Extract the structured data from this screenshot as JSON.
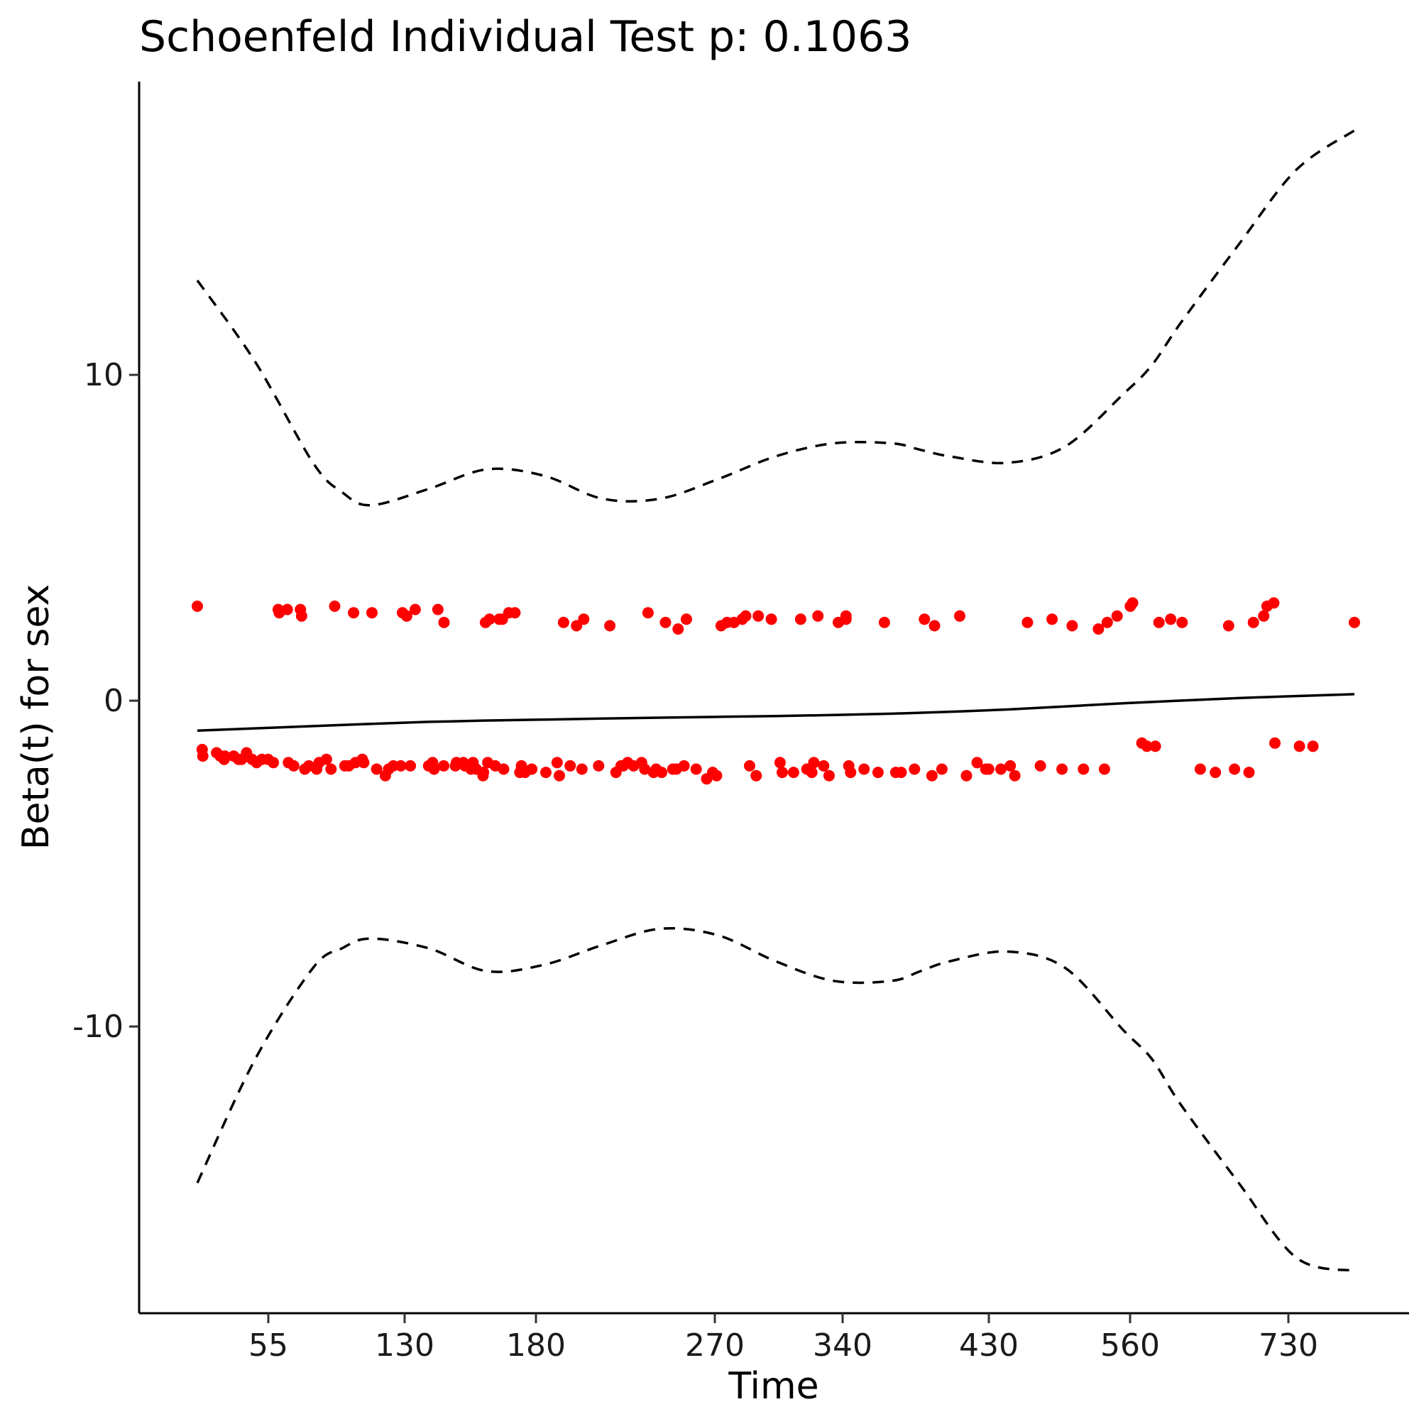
{
  "chart_data": {
    "type": "scatter",
    "title": "Schoenfeld Individual Test p: 0.1063",
    "xlabel": "Time",
    "ylabel": "Beta(t) for sex",
    "x_axis_scale": "km-transformed time",
    "x_ticks": [
      "55",
      "130",
      "180",
      "270",
      "340",
      "430",
      "560",
      "730"
    ],
    "y_ticks": [
      -10,
      0,
      10
    ],
    "ylim": [
      -18.8,
      19.0
    ],
    "grid": false,
    "legend": "none",
    "colors": {
      "points": "#ff0000",
      "fit": "#000000",
      "band": "#000000"
    },
    "series": [
      {
        "kind": "points",
        "x_rank": [
          0.0,
          0.0042,
          0.0047,
          0.0166,
          0.0198,
          0.0232,
          0.0238,
          0.0314,
          0.0356,
          0.0382,
          0.0425,
          0.0473,
          0.0512,
          0.0558,
          0.0611,
          0.0657,
          0.0699,
          0.0708,
          0.0777,
          0.0787,
          0.0833,
          0.0891,
          0.0901,
          0.0929,
          0.0964,
          0.1031,
          0.1052,
          0.1116,
          0.1155,
          0.1187,
          0.1275,
          0.1309,
          0.135,
          0.1367,
          0.1426,
          0.1438,
          0.1509,
          0.155,
          0.1625,
          0.1653,
          0.1694,
          0.1758,
          0.1773,
          0.1809,
          0.1841,
          0.1883,
          0.1999,
          0.2033,
          0.2046,
          0.2079,
          0.2129,
          0.2132,
          0.223,
          0.224,
          0.2299,
          0.2313,
          0.2365,
          0.2383,
          0.2411,
          0.2469,
          0.2473,
          0.249,
          0.251,
          0.2525,
          0.2575,
          0.2609,
          0.2637,
          0.2647,
          0.2692,
          0.2745,
          0.2787,
          0.2801,
          0.2832,
          0.289,
          0.3012,
          0.3109,
          0.3129,
          0.3165,
          0.3222,
          0.3277,
          0.3324,
          0.3339,
          0.3468,
          0.3565,
          0.3618,
          0.3662,
          0.3681,
          0.3719,
          0.377,
          0.384,
          0.3867,
          0.3895,
          0.3943,
          0.3965,
          0.4013,
          0.4046,
          0.4109,
          0.414,
          0.4155,
          0.4206,
          0.4227,
          0.4311,
          0.4402,
          0.4454,
          0.4488,
          0.4527,
          0.4578,
          0.4638,
          0.471,
          0.4739,
          0.4773,
          0.483,
          0.4848,
          0.4961,
          0.5036,
          0.5055,
          0.5153,
          0.5214,
          0.5268,
          0.5311,
          0.5328,
          0.5363,
          0.5413,
          0.546,
          0.554,
          0.5606,
          0.5606,
          0.563,
          0.5646,
          0.5762,
          0.5883,
          0.5938,
          0.6036,
          0.6083,
          0.6198,
          0.6284,
          0.6349,
          0.6371,
          0.6435,
          0.6589,
          0.6647,
          0.6739,
          0.6814,
          0.6839,
          0.6945,
          0.7026,
          0.7065,
          0.7174,
          0.7286,
          0.7387,
          0.7473,
          0.7561,
          0.7658,
          0.7788,
          0.784,
          0.7864,
          0.7949,
          0.8063,
          0.8083,
          0.8163,
          0.8207,
          0.828,
          0.8311,
          0.8412,
          0.8511,
          0.8668,
          0.8799,
          0.8913,
          0.8964,
          0.9089,
          0.9127,
          0.9216,
          0.9245,
          0.9303,
          0.9313,
          0.9525,
          0.9642,
          1.0
        ],
        "y": [
          2.9,
          -1.5,
          -1.7,
          -1.6,
          -1.7,
          -1.8,
          -1.7,
          -1.7,
          -1.8,
          -1.8,
          -1.6,
          -1.8,
          -1.9,
          -1.8,
          -1.8,
          -1.9,
          2.8,
          2.7,
          2.8,
          -1.9,
          -2.0,
          2.8,
          2.6,
          -2.1,
          -2.0,
          -2.1,
          -1.9,
          -1.8,
          -2.1,
          2.9,
          -2.0,
          -2.0,
          2.7,
          -1.9,
          -1.8,
          -1.9,
          2.7,
          -2.1,
          -2.3,
          -2.1,
          -2.0,
          -2.0,
          2.7,
          2.6,
          -2.0,
          2.8,
          -2.0,
          -1.9,
          -2.1,
          2.8,
          -2.0,
          2.4,
          -2.0,
          -1.9,
          -1.9,
          -2.0,
          -2.1,
          -1.9,
          -2.1,
          -2.3,
          -2.2,
          2.4,
          -1.9,
          2.5,
          -2.0,
          2.5,
          2.5,
          -2.1,
          2.7,
          2.7,
          -2.2,
          -2.0,
          -2.2,
          -2.1,
          -2.2,
          -1.9,
          -2.3,
          2.4,
          -2.0,
          2.3,
          -2.1,
          2.5,
          -2.0,
          2.3,
          -2.2,
          -2.0,
          -2.0,
          -1.9,
          -2.0,
          -1.9,
          -2.1,
          2.7,
          -2.2,
          -2.1,
          -2.2,
          2.4,
          -2.1,
          -2.1,
          2.2,
          -2.0,
          2.5,
          -2.1,
          -2.4,
          -2.2,
          -2.3,
          2.3,
          2.4,
          2.4,
          2.5,
          2.6,
          -2.0,
          -2.3,
          2.6,
          2.5,
          -1.9,
          -2.2,
          -2.2,
          2.5,
          -2.1,
          -2.2,
          -1.9,
          2.6,
          -2.0,
          -2.3,
          2.4,
          2.6,
          2.5,
          -2.0,
          -2.2,
          -2.1,
          -2.2,
          2.4,
          -2.2,
          -2.2,
          -2.1,
          2.5,
          -2.3,
          2.3,
          -2.1,
          2.6,
          -2.3,
          -1.9,
          -2.1,
          -2.1,
          -2.1,
          -2.0,
          -2.3,
          2.4,
          -2.0,
          2.5,
          -2.1,
          2.3,
          -2.1,
          2.2,
          -2.1,
          2.4,
          2.6,
          2.9,
          3.0,
          -1.3,
          -1.4,
          -1.4,
          2.4,
          2.5,
          2.4,
          -2.1,
          -2.2,
          2.3,
          -2.1,
          -2.2,
          2.4,
          2.6,
          2.9,
          3.0,
          -1.3,
          -1.4,
          -1.4,
          2.4
        ]
      },
      {
        "kind": "fit",
        "x_rank": [
          0.0,
          0.1,
          0.2,
          0.3,
          0.4,
          0.5,
          0.6,
          0.7,
          0.8,
          0.9,
          1.0
        ],
        "y": [
          -0.92,
          -0.78,
          -0.65,
          -0.58,
          -0.52,
          -0.47,
          -0.4,
          -0.27,
          -0.08,
          0.08,
          0.2
        ]
      },
      {
        "kind": "upper-band",
        "x_rank": [
          0.0,
          0.05,
          0.1,
          0.125,
          0.15,
          0.2,
          0.25,
          0.3,
          0.35,
          0.4,
          0.45,
          0.5,
          0.55,
          0.6,
          0.625,
          0.65,
          0.7,
          0.75,
          0.8,
          0.825,
          0.85,
          0.9,
          0.95,
          1.0
        ],
        "y": [
          12.9,
          10.4,
          7.3,
          6.4,
          6.0,
          6.5,
          7.1,
          6.9,
          6.2,
          6.2,
          6.8,
          7.5,
          7.9,
          7.9,
          7.7,
          7.5,
          7.3,
          7.8,
          9.4,
          10.3,
          11.6,
          14.0,
          16.3,
          17.5
        ]
      },
      {
        "kind": "lower-band",
        "x_rank": [
          0.0,
          0.05,
          0.1,
          0.125,
          0.15,
          0.2,
          0.25,
          0.3,
          0.35,
          0.4,
          0.45,
          0.5,
          0.55,
          0.6,
          0.625,
          0.65,
          0.7,
          0.75,
          0.8,
          0.825,
          0.85,
          0.9,
          0.95,
          1.0
        ],
        "y": [
          -14.8,
          -11.0,
          -8.2,
          -7.6,
          -7.3,
          -7.6,
          -8.3,
          -8.1,
          -7.5,
          -7.0,
          -7.2,
          -8.0,
          -8.6,
          -8.6,
          -8.3,
          -8.0,
          -7.7,
          -8.2,
          -10.1,
          -11.0,
          -12.4,
          -14.8,
          -17.1,
          -17.5
        ]
      }
    ]
  }
}
